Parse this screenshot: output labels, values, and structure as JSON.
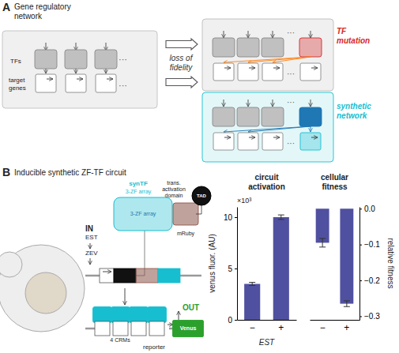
{
  "chart_data": [
    {
      "type": "diagram",
      "annotations": [
        "A",
        "Gene regulatory\nnetwork",
        "TFs",
        "···",
        "target\ngenes",
        "···",
        "loss of\nfidelity",
        "···",
        "···",
        "TF",
        "mutation",
        "···",
        "···",
        "synthetic",
        "network",
        "B",
        "Inducible synthetic ZF-TF circuit",
        "synTF",
        "3-ZF array",
        "trans.\nactivation\ndomain",
        "TAD",
        "3-ZF array",
        "mRuby",
        "IN",
        "EST",
        "ZEV",
        "OUT",
        "Venus",
        "4 CRMs",
        "reporter"
      ]
    },
    {
      "type": "bar",
      "title": "circuit\nactivation",
      "categories": [
        "−",
        "+"
      ],
      "values": [
        3.5,
        10
      ],
      "errors": [
        0.15,
        0.22
      ],
      "color": "#5050a0",
      "ylim": [
        0,
        11
      ],
      "yticks": [
        0,
        5,
        10
      ],
      "y_label": "venus fluor. (AU)",
      "x_label": "EST",
      "annotations": [
        "×10³"
      ],
      "grid": false
    },
    {
      "type": "bar",
      "title": "cellular\nfitness",
      "categories": [
        "−",
        "+"
      ],
      "values": [
        -0.095,
        -0.265
      ],
      "errors": [
        0.012,
        0.008
      ],
      "color": "#5050a0",
      "ylim": [
        -0.31,
        0.005
      ],
      "yticks": [
        {
          "value": 0,
          "label": "0.0"
        },
        {
          "value": -0.1,
          "label": "−0.1"
        },
        {
          "value": -0.2,
          "label": "−0.2"
        },
        {
          "value": -0.3,
          "label": "−0.3"
        }
      ],
      "y_label": "relative fitness",
      "grid": false
    }
  ]
}
